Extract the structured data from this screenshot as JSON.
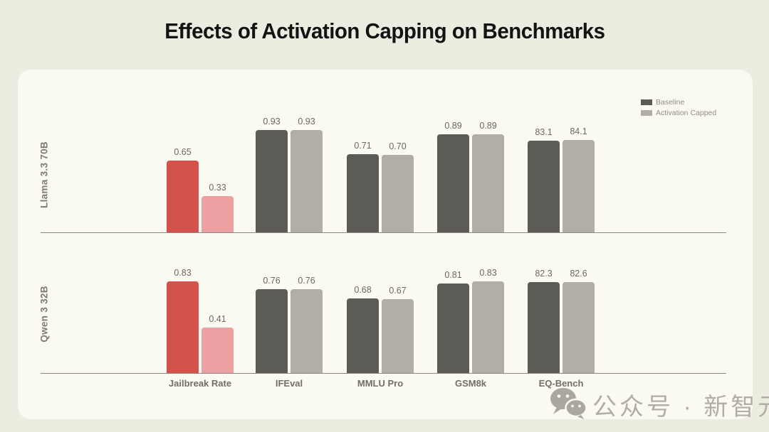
{
  "page": {
    "title": "Effects of Activation Capping on Benchmarks"
  },
  "legend": {
    "position": "top-right",
    "items": [
      {
        "label": "Baseline",
        "color": "#5d5b56"
      },
      {
        "label": "Activation Capped",
        "color": "#b1aea6"
      }
    ]
  },
  "watermark": {
    "icon": "wechat-icon",
    "text": "公众号 · 新智元"
  },
  "chart_data": {
    "type": "bar",
    "title": "Effects of Activation Capping on Benchmarks",
    "categories": [
      "Jailbreak Rate",
      "IFEval",
      "MMLU Pro",
      "GSM8k",
      "EQ-Bench"
    ],
    "legend": [
      "Baseline",
      "Activation Capped"
    ],
    "legend_position": "top-right",
    "grid": false,
    "ylim": [
      0,
      1
    ],
    "scale_note": "Jailbreak Rate, IFEval, MMLU Pro, GSM8k plotted on 0-1 scale; EQ-Bench values are 0-100 and plotted divided by 100",
    "panels": [
      {
        "row_label": "Llama 3.3 70B",
        "series": [
          {
            "name": "Baseline",
            "values": [
              0.65,
              0.93,
              0.71,
              0.89,
              83.1
            ],
            "labels": [
              "0.65",
              "0.93",
              "0.71",
              "0.89",
              "83.1"
            ]
          },
          {
            "name": "Activation Capped",
            "values": [
              0.33,
              0.93,
              0.7,
              0.89,
              84.1
            ],
            "labels": [
              "0.33",
              "0.93",
              "0.70",
              "0.89",
              "84.1"
            ]
          }
        ]
      },
      {
        "row_label": "Qwen 3 32B",
        "series": [
          {
            "name": "Baseline",
            "values": [
              0.83,
              0.76,
              0.68,
              0.81,
              82.3
            ],
            "labels": [
              "0.83",
              "0.76",
              "0.68",
              "0.81",
              "82.3"
            ]
          },
          {
            "name": "Activation Capped",
            "values": [
              0.41,
              0.76,
              0.67,
              0.83,
              82.6
            ],
            "labels": [
              "0.41",
              "0.76",
              "0.67",
              "0.83",
              "82.6"
            ]
          }
        ]
      }
    ],
    "colors": {
      "baseline_default": "#5d5b56",
      "capped_default": "#b1aea6",
      "baseline_highlight": "#d5514c",
      "capped_highlight": "#eda0a2",
      "highlight_category": "Jailbreak Rate",
      "axis": "#8b897f",
      "value_label": "#6b695f",
      "page_background": "#edece1",
      "card_background": "#faf9f2"
    }
  }
}
